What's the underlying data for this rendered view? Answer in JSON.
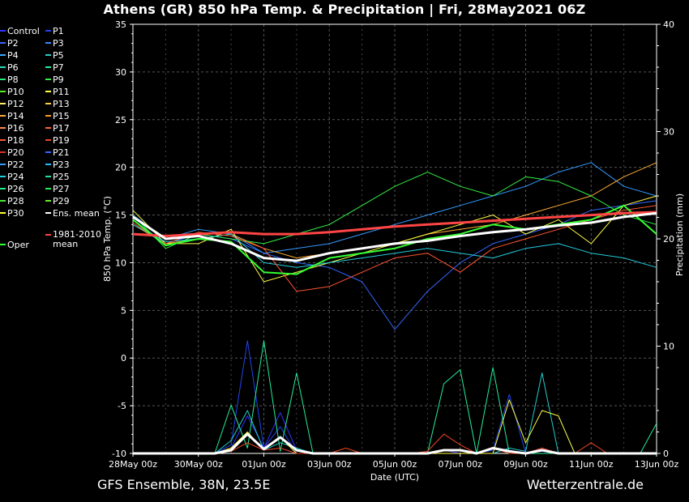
{
  "title": "Athens  (GR)  850 hPa Temp. & Precipitation | Fri, 28May2021 06Z",
  "footer": {
    "model": "GFS Ensemble, 38N, 23.5E",
    "site": "Wetterzentrale.de"
  },
  "chart_data": {
    "type": "line",
    "xlabel": "Date (UTC)",
    "ylabel": "850 hPa Temp. (°C)",
    "y2label": "Precipitation (mm)",
    "ylim": [
      -10,
      35
    ],
    "y2lim": [
      0,
      40
    ],
    "xlim": [
      "2021-05-28 00z",
      "2021-06-13 00z"
    ],
    "x_ticks": [
      "28May 00z",
      "30May 00z",
      "01Jun 00z",
      "03Jun 00z",
      "05Jun 00z",
      "07Jun 00z",
      "09Jun 00z",
      "11Jun 00z",
      "13Jun 00z"
    ],
    "y_ticks": [
      35,
      30,
      25,
      20,
      15,
      10,
      5,
      0,
      -5,
      -10
    ],
    "y2_ticks": [
      40,
      30,
      20,
      10,
      0
    ],
    "grid": true,
    "legend_position": "left",
    "legend": [
      {
        "name": "Control",
        "color": "#3333ff"
      },
      {
        "name": "P1",
        "color": "#2244ee"
      },
      {
        "name": "P2",
        "color": "#3366ff"
      },
      {
        "name": "P3",
        "color": "#3388ff"
      },
      {
        "name": "P4",
        "color": "#33aaff"
      },
      {
        "name": "P5",
        "color": "#22cccc"
      },
      {
        "name": "P6",
        "color": "#22ddbb"
      },
      {
        "name": "P7",
        "color": "#22ee99"
      },
      {
        "name": "P8",
        "color": "#22ee77"
      },
      {
        "name": "P9",
        "color": "#33ee44"
      },
      {
        "name": "P10",
        "color": "#55ee22"
      },
      {
        "name": "P11",
        "color": "#ffff44"
      },
      {
        "name": "P12",
        "color": "#ffee66"
      },
      {
        "name": "P13",
        "color": "#ffcc44"
      },
      {
        "name": "P14",
        "color": "#ffaa33"
      },
      {
        "name": "P15",
        "color": "#ff9922"
      },
      {
        "name": "P16",
        "color": "#ff8844"
      },
      {
        "name": "P17",
        "color": "#ff6633"
      },
      {
        "name": "P18",
        "color": "#ff5533"
      },
      {
        "name": "P19",
        "color": "#ee4422"
      },
      {
        "name": "P20",
        "color": "#dd3322"
      },
      {
        "name": "P21",
        "color": "#3366ff"
      },
      {
        "name": "P22",
        "color": "#3399ff"
      },
      {
        "name": "P23",
        "color": "#22bbff"
      },
      {
        "name": "P24",
        "color": "#22ccdd"
      },
      {
        "name": "P25",
        "color": "#22ddaa"
      },
      {
        "name": "P26",
        "color": "#22ee88"
      },
      {
        "name": "P27",
        "color": "#22ee55"
      },
      {
        "name": "P28",
        "color": "#44ee33"
      },
      {
        "name": "P29",
        "color": "#66ee22"
      },
      {
        "name": "P30",
        "color": "#ffff33"
      },
      {
        "name": "Ens. mean",
        "color": "#ffffff"
      },
      {
        "name": "Oper",
        "color": "#33ff33"
      },
      {
        "name": "1981-2010 mean",
        "color": "#ff4444"
      }
    ],
    "series": [
      {
        "name": "Ens. mean",
        "color": "#ffffff",
        "kind": "temp",
        "step_hours": 24,
        "values": [
          14.8,
          12.5,
          12.8,
          12.0,
          10.5,
          10.2,
          11.0,
          11.5,
          12.0,
          12.3,
          12.8,
          13.2,
          13.5,
          13.9,
          14.2,
          14.8,
          15.2
        ]
      },
      {
        "name": "1981-2010 mean",
        "color": "#ff4444",
        "kind": "temp",
        "step_hours": 24,
        "values": [
          13.0,
          12.8,
          13.0,
          13.2,
          13.0,
          13.0,
          13.2,
          13.5,
          13.8,
          14.0,
          14.2,
          14.4,
          14.6,
          14.8,
          15.0,
          15.2,
          15.3
        ]
      },
      {
        "name": "Oper",
        "color": "#33ff33",
        "kind": "temp",
        "step_hours": 24,
        "values": [
          14.5,
          11.8,
          12.5,
          12.2,
          9.0,
          8.8,
          10.5,
          11.0,
          11.5,
          12.5,
          13.0,
          14.0,
          13.5,
          14.0,
          14.5,
          16.0,
          13.0
        ]
      },
      {
        "name": "P21",
        "color": "#3366ff",
        "kind": "temp",
        "step_hours": 24,
        "values": [
          14.5,
          12.0,
          13.0,
          12.5,
          11.0,
          10.0,
          9.5,
          8.0,
          3.0,
          7.0,
          10.0,
          12.0,
          13.0,
          14.0,
          15.5,
          16.0,
          16.5
        ]
      },
      {
        "name": "P22",
        "color": "#3399ff",
        "kind": "temp",
        "step_hours": 24,
        "values": [
          15.0,
          12.5,
          13.5,
          13.0,
          11.0,
          11.5,
          12.0,
          13.0,
          14.0,
          15.0,
          16.0,
          17.0,
          18.0,
          19.5,
          20.5,
          18.0,
          17.0
        ]
      },
      {
        "name": "P14",
        "color": "#ffaa33",
        "kind": "temp",
        "step_hours": 24,
        "values": [
          14.0,
          12.0,
          12.5,
          13.0,
          11.5,
          10.5,
          11.0,
          11.5,
          12.0,
          13.0,
          13.5,
          14.0,
          15.0,
          16.0,
          17.0,
          19.0,
          20.5
        ]
      },
      {
        "name": "P11",
        "color": "#ffff44",
        "kind": "temp",
        "step_hours": 24,
        "values": [
          15.5,
          12.0,
          12.0,
          13.5,
          8.0,
          9.0,
          10.0,
          11.0,
          12.0,
          13.0,
          14.0,
          15.0,
          13.0,
          14.5,
          12.0,
          16.0,
          17.0
        ]
      },
      {
        "name": "P9",
        "color": "#33ee44",
        "kind": "temp",
        "step_hours": 24,
        "values": [
          15.0,
          11.5,
          13.0,
          12.5,
          12.0,
          13.0,
          14.0,
          16.0,
          18.0,
          19.5,
          18.0,
          17.0,
          19.0,
          18.5,
          17.0,
          15.0,
          14.0
        ]
      },
      {
        "name": "P24",
        "color": "#22ccdd",
        "kind": "temp",
        "step_hours": 24,
        "values": [
          14.0,
          12.2,
          12.5,
          13.0,
          10.0,
          9.5,
          10.0,
          10.5,
          11.0,
          11.5,
          11.0,
          10.5,
          11.5,
          12.0,
          11.0,
          10.5,
          9.5
        ]
      },
      {
        "name": "P18",
        "color": "#ff5533",
        "kind": "temp",
        "step_hours": 24,
        "values": [
          14.2,
          12.0,
          13.2,
          12.8,
          11.5,
          7.0,
          7.5,
          9.0,
          10.5,
          11.0,
          9.0,
          11.5,
          12.5,
          13.5,
          14.5,
          15.5,
          16.0
        ]
      },
      {
        "name": "Control",
        "color": "#3333ff",
        "kind": "precip",
        "step_hours": 12,
        "values": [
          0,
          0,
          0,
          0,
          0,
          0,
          0.5,
          3.5,
          0.5,
          3.8,
          0.3,
          0,
          0,
          0,
          0,
          0,
          0,
          0,
          0,
          0.3,
          0,
          0,
          0.5,
          0.3,
          0,
          0.5,
          0,
          0,
          0,
          0,
          0,
          0,
          0
        ]
      },
      {
        "name": "P1",
        "color": "#2244ee",
        "kind": "precip",
        "step_hours": 12,
        "values": [
          0,
          0,
          0,
          0,
          0,
          0,
          0.8,
          10.5,
          0.5,
          2.5,
          0,
          0,
          0,
          0,
          0,
          0,
          0,
          0,
          0,
          0,
          0,
          0,
          0.3,
          5.5,
          0,
          0.2,
          0,
          0,
          0,
          0,
          0,
          0,
          0
        ]
      },
      {
        "name": "P5",
        "color": "#22cccc",
        "kind": "precip",
        "step_hours": 12,
        "values": [
          0,
          0,
          0,
          0,
          0,
          0,
          1.2,
          4.0,
          0.3,
          1.0,
          0.5,
          0,
          0,
          0,
          0,
          0,
          0,
          0,
          0,
          0,
          0,
          0,
          0,
          0.5,
          0.2,
          7.5,
          0,
          0,
          0,
          0,
          0,
          0,
          0
        ]
      },
      {
        "name": "P7",
        "color": "#22ee99",
        "kind": "precip",
        "step_hours": 12,
        "values": [
          0,
          0,
          0,
          0,
          0,
          0,
          4.5,
          0.5,
          10.5,
          0.2,
          7.5,
          0,
          0,
          0,
          0,
          0,
          0,
          0,
          0,
          6.5,
          7.8,
          0,
          8.0,
          0,
          0,
          0,
          0,
          0,
          0,
          0,
          0,
          0,
          2.8
        ]
      },
      {
        "name": "P11",
        "color": "#ffff44",
        "kind": "precip",
        "step_hours": 12,
        "values": [
          0,
          0,
          0,
          0,
          0,
          0,
          0.5,
          2.0,
          0.3,
          1.5,
          0,
          0,
          0,
          0,
          0,
          0,
          0,
          0,
          0,
          0,
          0,
          0,
          0,
          5.0,
          1.0,
          4.0,
          3.5,
          0,
          0,
          0,
          0,
          0,
          0
        ]
      },
      {
        "name": "P19",
        "color": "#ee4422",
        "kind": "precip",
        "step_hours": 12,
        "values": [
          0,
          0,
          0,
          0,
          0,
          0,
          0.2,
          1.0,
          0.3,
          0.5,
          0,
          0,
          0,
          0.5,
          0,
          0,
          0,
          0,
          0.2,
          1.8,
          0.8,
          0,
          0.5,
          0,
          0,
          0.5,
          0,
          0,
          1.0,
          0,
          0,
          0,
          0
        ]
      },
      {
        "name": "Ens. mean",
        "color": "#ffffff",
        "kind": "precip",
        "step_hours": 12,
        "values": [
          0,
          0,
          0,
          0,
          0,
          0,
          0.3,
          1.8,
          0.4,
          1.5,
          0.3,
          0,
          0,
          0,
          0,
          0,
          0,
          0,
          0,
          0.3,
          0.3,
          0,
          0.5,
          0.2,
          0,
          0.3,
          0,
          0,
          0,
          0,
          0,
          0,
          0
        ]
      }
    ]
  }
}
